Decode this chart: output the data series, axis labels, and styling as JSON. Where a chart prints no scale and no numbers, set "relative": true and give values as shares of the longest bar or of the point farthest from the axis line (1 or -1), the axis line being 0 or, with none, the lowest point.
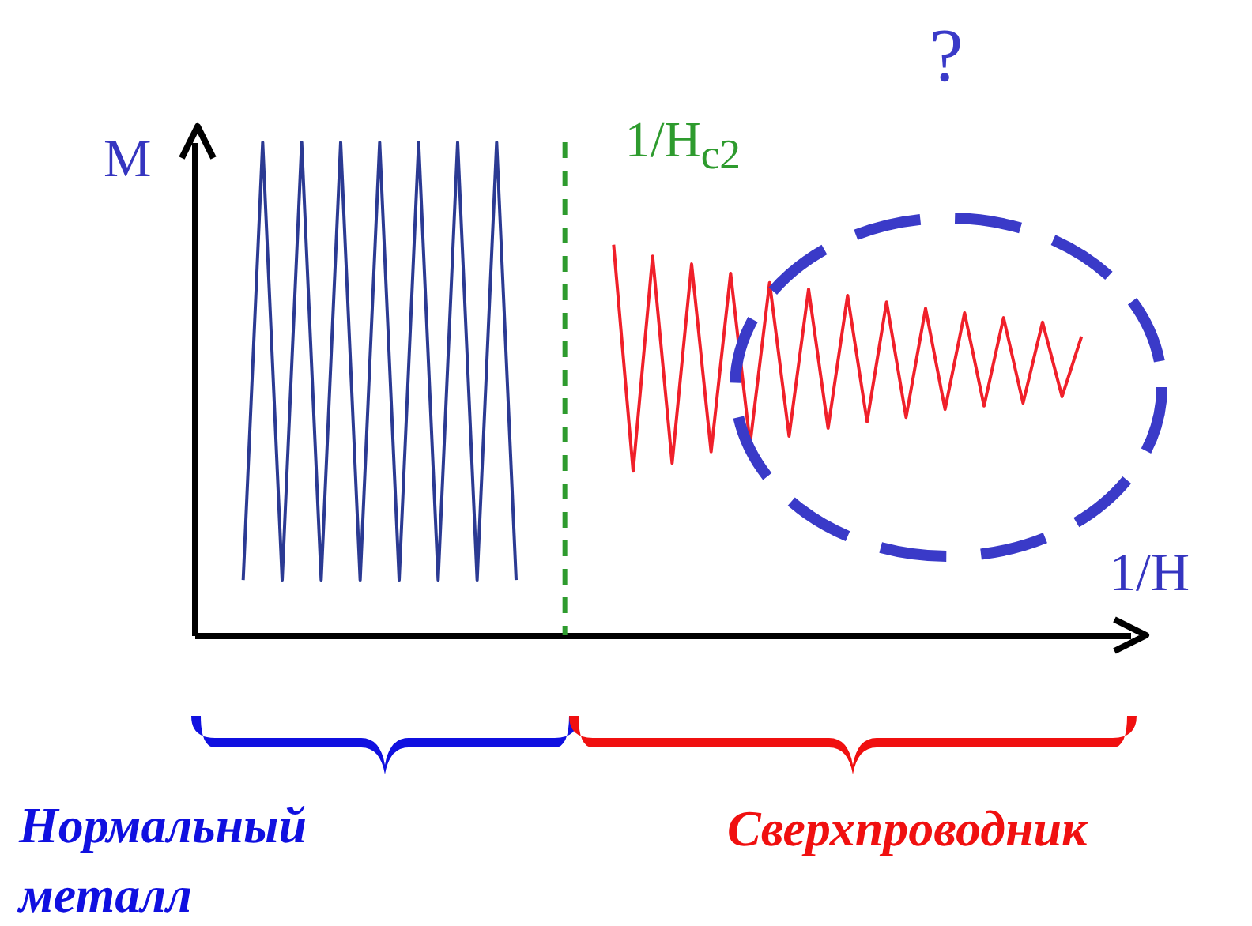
{
  "chart_data": {
    "type": "line",
    "relative": true,
    "xlabel": "1/H",
    "ylabel": "M",
    "categories": [
      null,
      null,
      null,
      null,
      null,
      null,
      null,
      null,
      null,
      null,
      null,
      null,
      null,
      null,
      null,
      null,
      null,
      null,
      null,
      null,
      null,
      null,
      null,
      null,
      null,
      null,
      null,
      null,
      null,
      null,
      null,
      null,
      null,
      null,
      null,
      null,
      null,
      null,
      null,
      null,
      null,
      null,
      null,
      null,
      null,
      null,
      null,
      null
    ],
    "tick_labels": false,
    "grid": false,
    "marker": "none",
    "line_style": "solid",
    "series": [
      {
        "color": "#2b3a93",
        "values": [
          null,
          null,
          0.112,
          1,
          0.112,
          1,
          0.112,
          1,
          0.112,
          1,
          0.112,
          1,
          0.112,
          1,
          0.112,
          1,
          0.112,
          null,
          null,
          null,
          null,
          null,
          null,
          null,
          null,
          null,
          null,
          null,
          null,
          null,
          null,
          null,
          null,
          null,
          null,
          null,
          null,
          null,
          null,
          null,
          null,
          null,
          null,
          null,
          null,
          null,
          null,
          null
        ]
      },
      {
        "color": "#f0202a",
        "values": [
          null,
          null,
          null,
          null,
          null,
          null,
          null,
          null,
          null,
          null,
          null,
          null,
          null,
          null,
          null,
          null,
          null,
          null,
          null,
          null,
          null,
          0.792,
          0.333,
          0.769,
          0.349,
          0.753,
          0.372,
          0.734,
          0.388,
          0.715,
          0.404,
          0.702,
          0.42,
          0.689,
          0.433,
          0.676,
          0.442,
          0.663,
          0.458,
          0.654,
          0.465,
          0.644,
          0.471,
          0.635,
          0.484,
          0.606,
          null,
          null
        ]
      }
    ],
    "ref_lines": [
      {
        "axis": "x",
        "label": "1/H$_{c2}$",
        "color": "#2e9b2e",
        "line_style": "dashed"
      }
    ],
    "annotations": [
      "?",
      "Нормальный металл",
      "Сверхпроводник"
    ]
  }
}
